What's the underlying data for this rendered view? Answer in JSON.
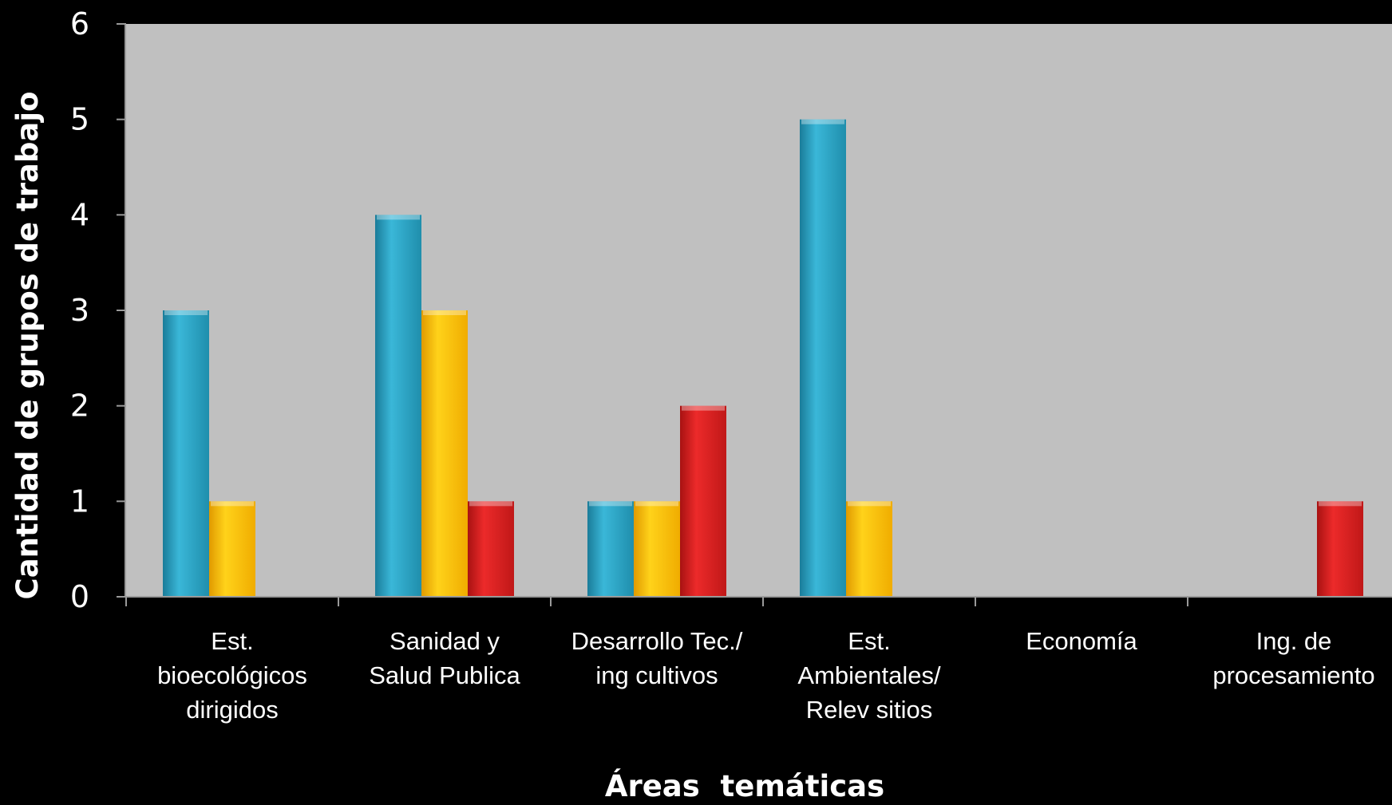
{
  "chart_data": {
    "type": "bar",
    "title": "",
    "xlabel": "Áreas  temáticas",
    "ylabel": "Cantidad de grupos de trabajo",
    "ylim": [
      0,
      6
    ],
    "yticks": [
      "0",
      "1",
      "2",
      "3",
      "4",
      "5",
      "6"
    ],
    "grid": false,
    "legend": "none",
    "categories": [
      [
        "Est.",
        "bioecológicos",
        "dirigidos"
      ],
      [
        "Sanidad y",
        "Salud Publica"
      ],
      [
        "Desarrollo Tec./",
        "ing cultivos"
      ],
      [
        "Est.",
        "Ambientales/",
        "Relev sitios"
      ],
      [
        "Economía"
      ],
      [
        "Ing. de",
        "procesamiento"
      ]
    ],
    "series": [
      {
        "color": "#2ba3c4",
        "values": [
          3,
          4,
          1,
          5,
          0,
          0
        ]
      },
      {
        "color": "#ffc000",
        "values": [
          1,
          3,
          1,
          1,
          0,
          0
        ]
      },
      {
        "color": "#d81f1f",
        "values": [
          0,
          1,
          2,
          0,
          0,
          1
        ]
      }
    ],
    "plot_background": "#c0c0c0",
    "background": "#000000"
  }
}
